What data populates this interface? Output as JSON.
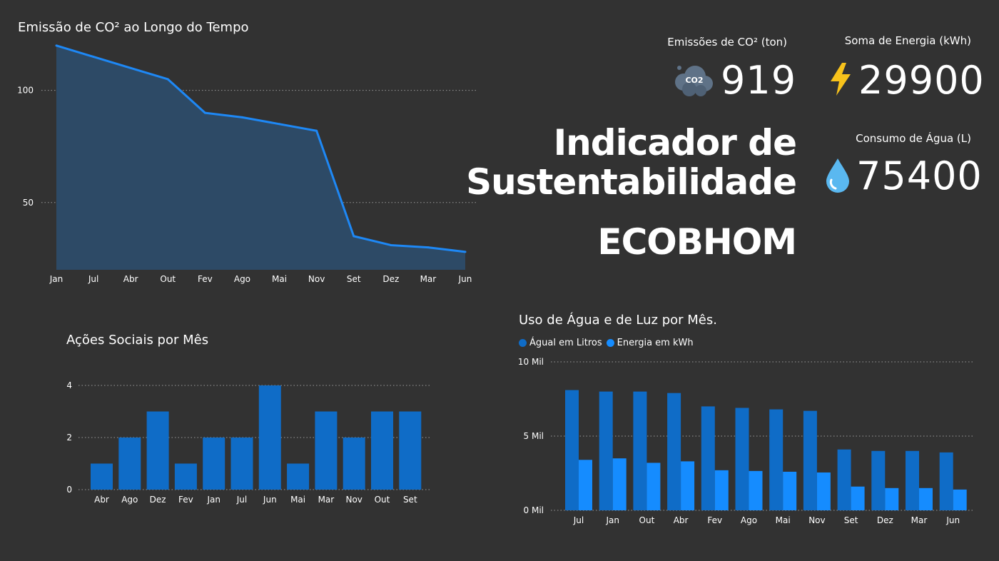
{
  "colors": {
    "background": "#323232",
    "line": "#1e88f5",
    "area_fill": "#2d4a66",
    "bar_primary": "#0f6cc7",
    "bar_secondary": "#158cff",
    "grid": "#9a9a9a",
    "bolt": "#f7c21b",
    "drop": "#5ab8f0",
    "cloud": "#5f7287"
  },
  "icons": {
    "co2": "co2-cloud-icon",
    "energy": "lightning-bolt-icon",
    "water": "water-drop-icon",
    "co2_text": "CO2"
  },
  "header": {
    "title_line1": "Indicador de",
    "title_line2": "Sustentabilidade",
    "company": "ECOBHOM"
  },
  "kpis": {
    "co2": {
      "label": "Emissões de CO² (ton)",
      "value": "919"
    },
    "energy": {
      "label": "Soma de Energia (kWh)",
      "value": "29900"
    },
    "water": {
      "label": "Consumo de Água (L)",
      "value": "75400"
    }
  },
  "chart_data": [
    {
      "type": "area",
      "title": "Emissão de CO² ao Longo do Tempo",
      "xlabel": "",
      "ylabel": "",
      "categories": [
        "Jan",
        "Jul",
        "Abr",
        "Out",
        "Fev",
        "Ago",
        "Mai",
        "Nov",
        "Set",
        "Dez",
        "Mar",
        "Jun"
      ],
      "values": [
        120,
        115,
        110,
        105,
        90,
        88,
        85,
        82,
        35,
        31,
        30,
        28
      ],
      "yticks": [
        "50",
        "100"
      ],
      "ylim": [
        20,
        124
      ],
      "grid": true
    },
    {
      "type": "bar",
      "title": "Ações Sociais por Mês",
      "xlabel": "",
      "ylabel": "",
      "categories": [
        "Abr",
        "Ago",
        "Dez",
        "Fev",
        "Jan",
        "Jul",
        "Jun",
        "Mai",
        "Mar",
        "Nov",
        "Out",
        "Set"
      ],
      "values": [
        1,
        2,
        3,
        1,
        2,
        2,
        4,
        1,
        3,
        2,
        3,
        3
      ],
      "yticks": [
        "0",
        "2",
        "4"
      ],
      "ylim": [
        0,
        4
      ],
      "grid": true
    },
    {
      "type": "bar",
      "title": "Uso de Água e de Luz por Mês.",
      "xlabel": "",
      "ylabel": "",
      "categories": [
        "Jul",
        "Jan",
        "Out",
        "Abr",
        "Fev",
        "Ago",
        "Mai",
        "Nov",
        "Set",
        "Dez",
        "Mar",
        "Jun"
      ],
      "series": [
        {
          "name": "Águal em Litros",
          "values": [
            8100,
            8000,
            8000,
            7900,
            7000,
            6900,
            6800,
            6700,
            4100,
            4000,
            4000,
            3900
          ]
        },
        {
          "name": "Energia em kWh",
          "values": [
            3400,
            3500,
            3200,
            3300,
            2700,
            2650,
            2600,
            2550,
            1600,
            1500,
            1500,
            1400
          ]
        }
      ],
      "yticks": [
        "0 Mil",
        "5 Mil",
        "10 Mil"
      ],
      "ylim": [
        0,
        10000
      ],
      "legend": "top-left",
      "grid": true
    }
  ]
}
